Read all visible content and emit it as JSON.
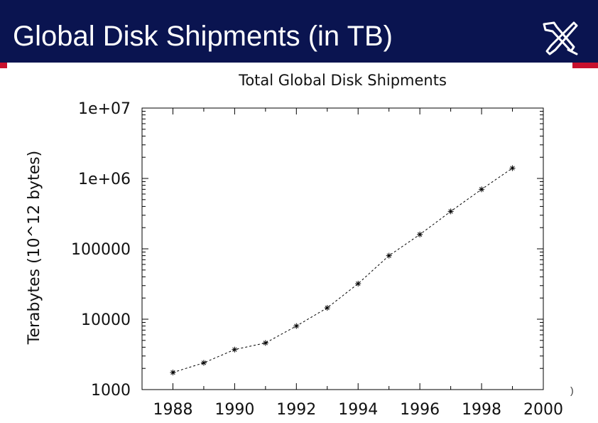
{
  "slide": {
    "title": "Global Disk Shipments (in TB)",
    "header_color": "#0a1450",
    "accent_color": "#c8102e",
    "logo_icon": "crossed-tools-icon",
    "edge_glyph": ")"
  },
  "chart_data": {
    "type": "line",
    "title": "Total Global Disk Shipments",
    "xlabel": "",
    "ylabel": "Terabytes (10^12 bytes)",
    "y_scale": "log",
    "xlim": [
      1987,
      2000
    ],
    "ylim": [
      1000,
      10000000
    ],
    "x_ticks": [
      "1988",
      "1990",
      "1992",
      "1994",
      "1996",
      "1998",
      "2000"
    ],
    "x_tick_values": [
      1988,
      1990,
      1992,
      1994,
      1996,
      1998,
      2000
    ],
    "y_ticks": [
      "1000",
      "10000",
      "100000",
      "1e+06",
      "1e+07"
    ],
    "y_tick_values": [
      1000,
      10000,
      100000,
      1000000,
      10000000
    ],
    "grid": false,
    "line_style": "dashed",
    "marker": "asterisk",
    "series": [
      {
        "x": [
          1988,
          1989,
          1990,
          1991,
          1992,
          1993,
          1994,
          1995,
          1996,
          1997,
          1998,
          1999
        ],
        "values": [
          1750,
          2400,
          3700,
          4600,
          8000,
          14500,
          32000,
          80000,
          160000,
          340000,
          700000,
          1400000
        ]
      }
    ]
  }
}
